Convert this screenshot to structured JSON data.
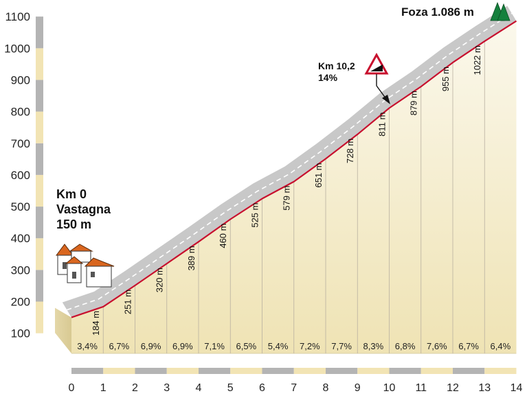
{
  "colors": {
    "profile_line": "#c8102e",
    "road_band": "#c8c8c8",
    "fill_top": "#fbf8ec",
    "fill_bottom": "#efe3b4",
    "axis_gray": "#b4b4b4",
    "axis_beige": "#f2e4b4",
    "tree_green": "#15803d"
  },
  "icons": {
    "start": "village-houses-icon",
    "summit": "pine-trees-icon",
    "climb": "steep-gradient-sign-icon"
  },
  "annotations": {
    "start": [
      "Km 0",
      "Vastagna",
      "150 m"
    ],
    "summit": "Foza 1.086 m",
    "steep": [
      "Km 10,2",
      "14%"
    ]
  },
  "chart_data": {
    "type": "area",
    "x": [
      0,
      1,
      2,
      3,
      4,
      5,
      6,
      7,
      8,
      9,
      10,
      11,
      12,
      13,
      14
    ],
    "altitudes": [
      150,
      184,
      251,
      320,
      389,
      460,
      525,
      579,
      651,
      728,
      811,
      879,
      955,
      1022,
      1086
    ],
    "altitude_labels": [
      "184 m",
      "251 m",
      "320 m",
      "389 m",
      "460 m",
      "525 m",
      "579 m",
      "651 m",
      "728 m",
      "811 m",
      "879 m",
      "955 m",
      "1022 m"
    ],
    "gradients": [
      "3,4%",
      "6,7%",
      "6,9%",
      "6,9%",
      "7,1%",
      "6,5%",
      "5,4%",
      "7,2%",
      "7,7%",
      "8,3%",
      "6,8%",
      "7,6%",
      "6,7%",
      "6,4%"
    ],
    "x_ticks": [
      "0",
      "1",
      "2",
      "3",
      "4",
      "5",
      "6",
      "7",
      "8",
      "9",
      "10",
      "11",
      "12",
      "13",
      "14"
    ],
    "y_ticks": [
      100,
      200,
      300,
      400,
      500,
      600,
      700,
      800,
      900,
      1000,
      1100
    ],
    "y_tick_labels": [
      "100",
      "200",
      "300",
      "400",
      "500",
      "600",
      "700",
      "800",
      "900",
      "1000",
      "1100"
    ],
    "xlim": [
      0,
      14
    ],
    "ylim": [
      100,
      1100
    ],
    "steep_point": {
      "x": 10.2,
      "altitude": 811
    },
    "grid": false
  }
}
